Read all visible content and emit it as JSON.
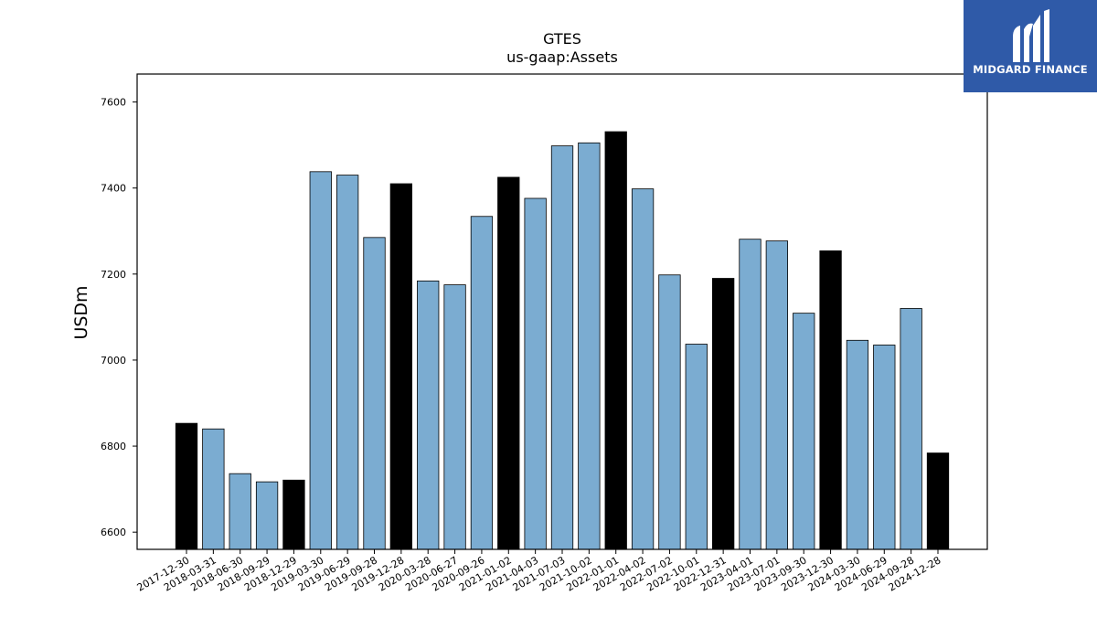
{
  "brand": {
    "name": "MIDGARD FINANCE",
    "logo_icon": "midgard-m-logo-icon",
    "background": "#2f5aa8"
  },
  "chart_data": {
    "type": "bar",
    "title": "GTES",
    "subtitle": "us-gaap:Assets",
    "ylabel": "USDm",
    "xlabel": "",
    "ylim": [
      6560,
      7665
    ],
    "yticks": [
      6600,
      6800,
      7000,
      7200,
      7400,
      7600
    ],
    "grid": false,
    "colors": {
      "quarter": "#7bacd1",
      "year_end": "#000000",
      "edge": "#000000"
    },
    "categories": [
      "2017-12-30",
      "2018-03-31",
      "2018-06-30",
      "2018-09-29",
      "2018-12-29",
      "2019-03-30",
      "2019-06-29",
      "2019-09-28",
      "2019-12-28",
      "2020-03-28",
      "2020-06-27",
      "2020-09-26",
      "2021-01-02",
      "2021-04-03",
      "2021-07-03",
      "2021-10-02",
      "2022-01-01",
      "2022-04-02",
      "2022-07-02",
      "2022-10-01",
      "2022-12-31",
      "2023-04-01",
      "2023-07-01",
      "2023-09-30",
      "2023-12-30",
      "2024-03-30",
      "2024-06-29",
      "2024-09-28",
      "2024-12-28"
    ],
    "values": [
      6853,
      6840,
      6736,
      6717,
      6721,
      7438,
      7430,
      7285,
      7410,
      7184,
      7175,
      7334,
      7425,
      7376,
      7498,
      7505,
      7531,
      7398,
      7198,
      7037,
      7190,
      7281,
      7277,
      7109,
      7254,
      7046,
      7035,
      7120,
      6784
    ],
    "year_end": [
      true,
      false,
      false,
      false,
      true,
      false,
      false,
      false,
      true,
      false,
      false,
      false,
      true,
      false,
      false,
      false,
      true,
      false,
      false,
      false,
      true,
      false,
      false,
      false,
      true,
      false,
      false,
      false,
      true
    ]
  }
}
